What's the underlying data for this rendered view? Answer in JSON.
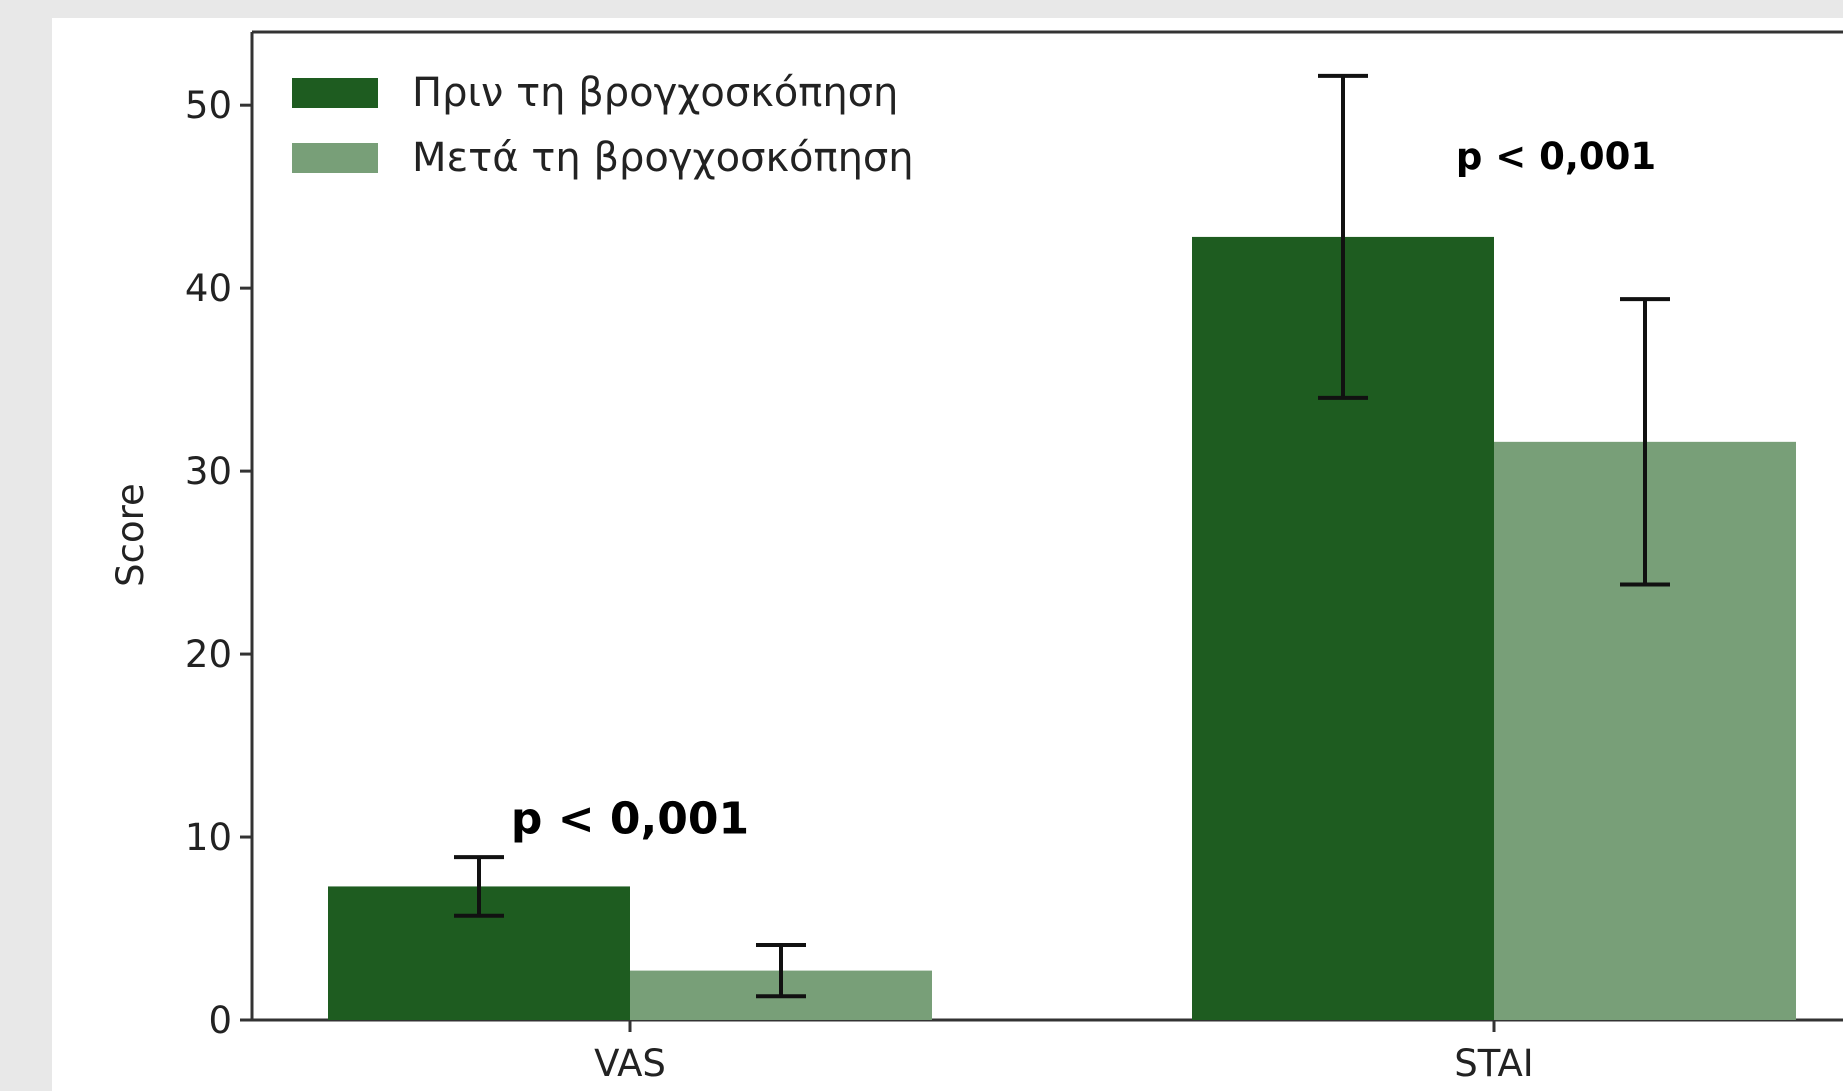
{
  "chart_data": {
    "type": "bar",
    "categories": [
      "VAS",
      "STAI"
    ],
    "series": [
      {
        "name": "Πριν τη βρογχοσκόπηση",
        "values": [
          7.3,
          42.8
        ],
        "error": [
          1.6,
          8.8
        ],
        "color": "#1e5c20"
      },
      {
        "name": "Μετά τη βρογχοσκόπηση",
        "values": [
          2.7,
          31.6
        ],
        "error": [
          1.4,
          7.8
        ],
        "color": "#789f78"
      }
    ],
    "ylabel": "Score",
    "xlabel": "",
    "ylim": [
      0,
      54
    ],
    "yticks": [
      0,
      10,
      20,
      30,
      40,
      50
    ],
    "legend_position": "top-left",
    "grid": false,
    "annotations": [
      {
        "text": "p < 0,001",
        "category": "VAS",
        "y": 10.2
      },
      {
        "text": "p < 0,001",
        "category": "STAI",
        "y": 46.5
      }
    ]
  }
}
